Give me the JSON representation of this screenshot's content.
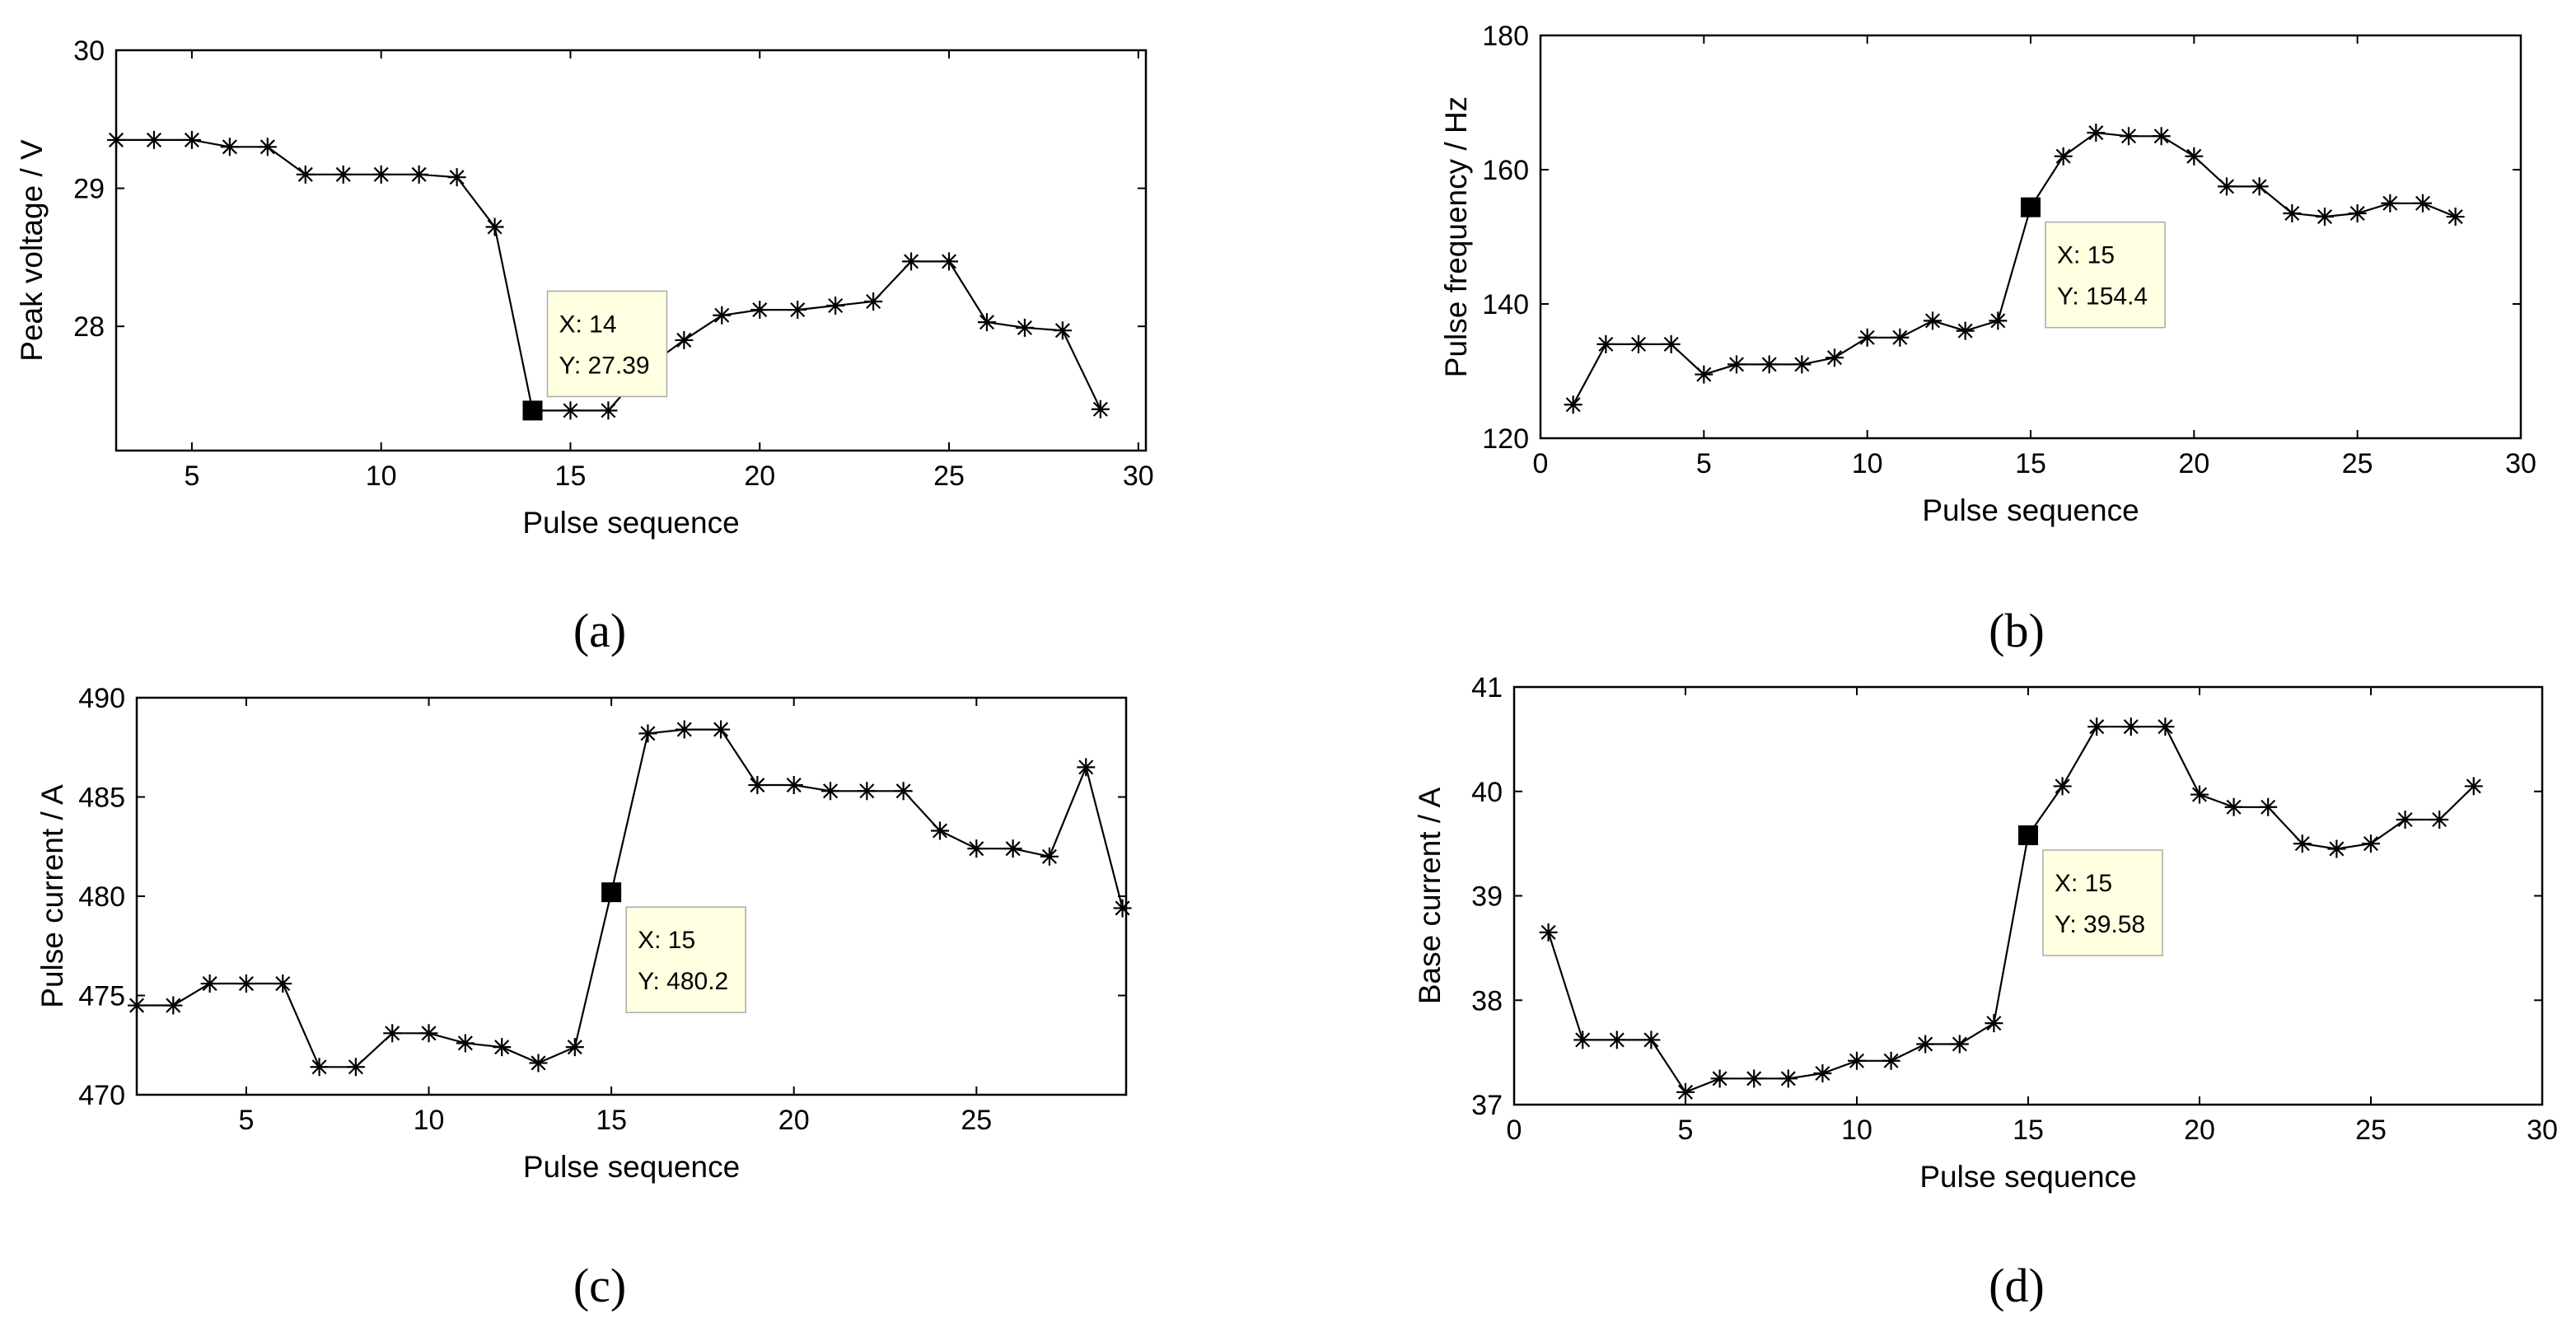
{
  "chart_data": [
    {
      "type": "line",
      "caption_letter": "a",
      "xlabel": "Pulse sequence",
      "ylabel": "Peak voltage / V",
      "xlim": [
        3,
        30.2
      ],
      "ylim": [
        27.1,
        30
      ],
      "xticks": [
        5,
        10,
        15,
        20,
        25,
        30
      ],
      "yticks": [
        28,
        29,
        30
      ],
      "grid": false,
      "marker": "asterisk",
      "x": [
        3,
        4,
        5,
        6,
        7,
        8,
        9,
        10,
        11,
        12,
        13,
        14,
        15,
        16,
        17,
        18,
        19,
        20,
        21,
        22,
        23,
        24,
        25,
        26,
        27,
        28,
        29
      ],
      "y": [
        29.35,
        29.35,
        29.35,
        29.3,
        29.3,
        29.1,
        29.1,
        29.1,
        29.1,
        29.08,
        28.72,
        27.39,
        27.39,
        27.39,
        27.7,
        27.9,
        28.08,
        28.12,
        28.12,
        28.15,
        28.18,
        28.47,
        28.47,
        28.03,
        27.99,
        27.97,
        27.4
      ],
      "datatip": {
        "x": 14,
        "y": 27.39,
        "x_text": "X: 14",
        "y_text": "Y: 27.39"
      }
    },
    {
      "type": "line",
      "caption_letter": "b",
      "xlabel": "Pulse sequence",
      "ylabel": "Pulse frequency / Hz",
      "xlim": [
        0,
        30
      ],
      "ylim": [
        120,
        180
      ],
      "xticks": [
        0,
        5,
        10,
        15,
        20,
        25,
        30
      ],
      "yticks": [
        120,
        140,
        160,
        180
      ],
      "grid": false,
      "marker": "asterisk",
      "x": [
        1,
        2,
        3,
        4,
        5,
        6,
        7,
        8,
        9,
        10,
        11,
        12,
        13,
        14,
        15,
        16,
        17,
        18,
        19,
        20,
        21,
        22,
        23,
        24,
        25,
        26,
        27,
        28
      ],
      "y": [
        125,
        134,
        134,
        134,
        129.5,
        131,
        131,
        131,
        132,
        135,
        135,
        137.5,
        136,
        137.5,
        154.4,
        162,
        165.5,
        165,
        165,
        162,
        157.5,
        157.5,
        153.5,
        153,
        153.5,
        155,
        155,
        153
      ],
      "datatip": {
        "x": 15,
        "y": 154.4,
        "x_text": "X: 15",
        "y_text": "Y: 154.4"
      }
    },
    {
      "type": "line",
      "caption_letter": "c",
      "xlabel": "Pulse sequence",
      "ylabel": "Pulse current / A",
      "xlim": [
        2,
        29.1
      ],
      "ylim": [
        470,
        490
      ],
      "xticks": [
        5,
        10,
        15,
        20,
        25
      ],
      "yticks": [
        470,
        475,
        480,
        485,
        490
      ],
      "grid": false,
      "marker": "asterisk",
      "x": [
        2,
        3,
        4,
        5,
        6,
        7,
        8,
        9,
        10,
        11,
        12,
        13,
        14,
        15,
        16,
        17,
        18,
        19,
        20,
        21,
        22,
        23,
        24,
        25,
        26,
        27,
        28,
        29
      ],
      "y": [
        474.5,
        474.5,
        475.6,
        475.6,
        475.6,
        471.4,
        471.4,
        473.1,
        473.1,
        472.6,
        472.4,
        471.6,
        472.4,
        480.2,
        488.2,
        488.4,
        488.4,
        485.6,
        485.6,
        485.3,
        485.3,
        485.3,
        483.3,
        482.4,
        482.4,
        482,
        486.5,
        479.4
      ],
      "datatip": {
        "x": 15,
        "y": 480.2,
        "x_text": "X: 15",
        "y_text": "Y: 480.2"
      }
    },
    {
      "type": "line",
      "caption_letter": "d",
      "xlabel": "Pulse sequence",
      "ylabel": "Base current / A",
      "xlim": [
        0,
        30
      ],
      "ylim": [
        37,
        41
      ],
      "xticks": [
        0,
        5,
        10,
        15,
        20,
        25,
        30
      ],
      "yticks": [
        37,
        38,
        39,
        40,
        41
      ],
      "grid": false,
      "marker": "asterisk",
      "x": [
        1,
        2,
        3,
        4,
        5,
        6,
        7,
        8,
        9,
        10,
        11,
        12,
        13,
        14,
        15,
        16,
        17,
        18,
        19,
        20,
        21,
        22,
        23,
        24,
        25,
        26,
        27,
        28
      ],
      "y": [
        38.65,
        37.62,
        37.62,
        37.62,
        37.12,
        37.25,
        37.25,
        37.25,
        37.3,
        37.42,
        37.42,
        37.58,
        37.58,
        37.78,
        39.58,
        40.05,
        40.62,
        40.62,
        40.62,
        39.97,
        39.85,
        39.85,
        39.5,
        39.45,
        39.5,
        39.73,
        39.73,
        40.05
      ],
      "datatip": {
        "x": 15,
        "y": 39.58,
        "x_text": "X: 15",
        "y_text": "Y: 39.58"
      }
    }
  ],
  "captions": [
    "(a)",
    "(b)",
    "(c)",
    "(d)"
  ]
}
